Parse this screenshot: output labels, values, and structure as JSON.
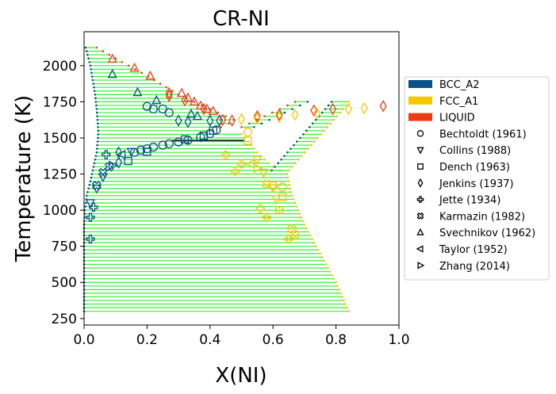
{
  "chart_data": {
    "type": "scatter",
    "title": "CR-NI",
    "xlabel": "X(NI)",
    "ylabel": "Temperature (K)",
    "xlim": [
      0,
      1
    ],
    "ylim": [
      205,
      2235
    ],
    "xticks": [
      "0.0",
      "0.2",
      "0.4",
      "0.6",
      "0.8",
      "1.0"
    ],
    "xtick_values": [
      0,
      0.2,
      0.4,
      0.6,
      0.8,
      1.0
    ],
    "yticks": [
      "250",
      "500",
      "750",
      "1000",
      "1250",
      "1500",
      "1750",
      "2000"
    ],
    "ytick_values": [
      250,
      500,
      750,
      1000,
      1250,
      1500,
      1750,
      2000
    ],
    "grid": false,
    "legend_placement": "outside-right",
    "colors": {
      "BCC_A2": "#0a5189",
      "FCC_A1": "#f5c800",
      "LIQUID": "#ee3a17",
      "tieline": "#33f033"
    },
    "phases": [
      {
        "name": "BCC_A2",
        "color": "#0a5189"
      },
      {
        "name": "FCC_A1",
        "color": "#f5c800"
      },
      {
        "name": "LIQUID",
        "color": "#ee3a17"
      }
    ],
    "datasets": [
      {
        "name": "Bechtoldt (1961)",
        "marker": "circle"
      },
      {
        "name": "Collins (1988)",
        "marker": "triangle-down"
      },
      {
        "name": "Dench (1963)",
        "marker": "square"
      },
      {
        "name": "Jenkins (1937)",
        "marker": "diamond"
      },
      {
        "name": "Jette (1934)",
        "marker": "plus"
      },
      {
        "name": "Karmazin (1982)",
        "marker": "x-cross"
      },
      {
        "name": "Svechnikov (1962)",
        "marker": "triangle-up"
      },
      {
        "name": "Taylor (1952)",
        "marker": "triangle-left"
      },
      {
        "name": "Zhang (2014)",
        "marker": "triangle-right"
      }
    ],
    "tieline_regions": [
      {
        "T_from": 1550,
        "T_to": 2125,
        "step": 25,
        "left_phase": "BCC_A2",
        "right_phase": "LIQUID",
        "left": [
          [
            0.045,
            1550
          ],
          [
            0.04,
            1700
          ],
          [
            0.035,
            1800
          ],
          [
            0.02,
            2000
          ],
          [
            0.005,
            2125
          ]
        ],
        "right": [
          [
            0.41,
            1550
          ],
          [
            0.48,
            1620
          ],
          [
            0.4,
            1700
          ],
          [
            0.3,
            1800
          ],
          [
            0.2,
            1930
          ],
          [
            0.1,
            2050
          ],
          [
            0.04,
            2125
          ]
        ]
      },
      {
        "T_from": 300,
        "T_to": 1525,
        "step": 25,
        "left_phase": "BCC_A2",
        "right_phase": "FCC_A1",
        "left": [
          [
            0,
            300
          ],
          [
            0,
            900
          ],
          [
            0.003,
            1000
          ],
          [
            0.008,
            1100
          ],
          [
            0.02,
            1200
          ],
          [
            0.03,
            1300
          ],
          [
            0.04,
            1400
          ],
          [
            0.045,
            1525
          ]
        ],
        "right": [
          [
            0.84,
            300
          ],
          [
            0.8,
            500
          ],
          [
            0.75,
            700
          ],
          [
            0.7,
            900
          ],
          [
            0.66,
            1100
          ],
          [
            0.645,
            1250
          ],
          [
            0.6,
            1300
          ],
          [
            0.55,
            1400
          ],
          [
            0.52,
            1480
          ],
          [
            0.5,
            1525
          ]
        ]
      },
      {
        "T_from": 1275,
        "T_to": 1750,
        "step": 25,
        "left_phase": "BCC_A2",
        "right_phase": "FCC_A1",
        "left": [
          [
            0.59,
            1260
          ],
          [
            0.79,
            1760
          ]
        ],
        "right": [
          [
            0.645,
            1260
          ],
          [
            0.84,
            1740
          ],
          [
            0.84,
            1760
          ]
        ]
      },
      {
        "T_from": 1575,
        "T_to": 1750,
        "step": 25,
        "left_phase": "LIQUID",
        "right_phase": "BCC_A2",
        "left": [
          [
            0.5,
            1575
          ],
          [
            0.68,
            1760
          ]
        ],
        "right": [
          [
            0.54,
            1575
          ],
          [
            0.72,
            1760
          ]
        ]
      }
    ],
    "invariant_line": {
      "x": [
        0.28,
        0.51
      ],
      "T": 1483
    },
    "points": [
      {
        "d": "Svechnikov (1962)",
        "p": "LIQUID",
        "x": 0.09,
        "T": 2046
      },
      {
        "d": "Svechnikov (1962)",
        "p": "LIQUID",
        "x": 0.16,
        "T": 1984
      },
      {
        "d": "Svechnikov (1962)",
        "p": "LIQUID",
        "x": 0.21,
        "T": 1929
      },
      {
        "d": "Svechnikov (1962)",
        "p": "LIQUID",
        "x": 0.31,
        "T": 1810
      },
      {
        "d": "Svechnikov (1962)",
        "p": "LIQUID",
        "x": 0.33,
        "T": 1777
      },
      {
        "d": "Svechnikov (1962)",
        "p": "LIQUID",
        "x": 0.35,
        "T": 1750
      },
      {
        "d": "Svechnikov (1962)",
        "p": "LIQUID",
        "x": 0.37,
        "T": 1722
      },
      {
        "d": "Svechnikov (1962)",
        "p": "LIQUID",
        "x": 0.39,
        "T": 1700
      },
      {
        "d": "Svechnikov (1962)",
        "p": "LIQUID",
        "x": 0.41,
        "T": 1685
      },
      {
        "d": "Svechnikov (1962)",
        "p": "BCC_A2",
        "x": 0.09,
        "T": 1940
      },
      {
        "d": "Svechnikov (1962)",
        "p": "BCC_A2",
        "x": 0.17,
        "T": 1815
      },
      {
        "d": "Svechnikov (1962)",
        "p": "BCC_A2",
        "x": 0.23,
        "T": 1760
      },
      {
        "d": "Svechnikov (1962)",
        "p": "BCC_A2",
        "x": 0.34,
        "T": 1665
      },
      {
        "d": "Svechnikov (1962)",
        "p": "BCC_A2",
        "x": 0.36,
        "T": 1650
      },
      {
        "d": "Bechtoldt (1961)",
        "p": "BCC_A2",
        "x": 0.2,
        "T": 1718
      },
      {
        "d": "Bechtoldt (1961)",
        "p": "BCC_A2",
        "x": 0.22,
        "T": 1700
      },
      {
        "d": "Bechtoldt (1961)",
        "p": "BCC_A2",
        "x": 0.25,
        "T": 1700
      },
      {
        "d": "Bechtoldt (1961)",
        "p": "BCC_A2",
        "x": 0.27,
        "T": 1675
      },
      {
        "d": "Bechtoldt (1961)",
        "p": "BCC_A2",
        "x": 0.16,
        "T": 1400
      },
      {
        "d": "Bechtoldt (1961)",
        "p": "BCC_A2",
        "x": 0.18,
        "T": 1415
      },
      {
        "d": "Bechtoldt (1961)",
        "p": "BCC_A2",
        "x": 0.2,
        "T": 1425
      },
      {
        "d": "Bechtoldt (1961)",
        "p": "BCC_A2",
        "x": 0.22,
        "T": 1437
      },
      {
        "d": "Bechtoldt (1961)",
        "p": "BCC_A2",
        "x": 0.25,
        "T": 1450
      },
      {
        "d": "Bechtoldt (1961)",
        "p": "BCC_A2",
        "x": 0.27,
        "T": 1460
      },
      {
        "d": "Bechtoldt (1961)",
        "p": "BCC_A2",
        "x": 0.3,
        "T": 1472
      },
      {
        "d": "Bechtoldt (1961)",
        "p": "BCC_A2",
        "x": 0.33,
        "T": 1485
      },
      {
        "d": "Bechtoldt (1961)",
        "p": "BCC_A2",
        "x": 0.37,
        "T": 1505
      },
      {
        "d": "Bechtoldt (1961)",
        "p": "BCC_A2",
        "x": 0.4,
        "T": 1530
      },
      {
        "d": "Bechtoldt (1961)",
        "p": "BCC_A2",
        "x": 0.42,
        "T": 1555
      },
      {
        "d": "Bechtoldt (1961)",
        "p": "FCC_A1",
        "x": 0.52,
        "T": 1540
      },
      {
        "d": "Bechtoldt (1961)",
        "p": "FCC_A1",
        "x": 0.6,
        "T": 1170
      },
      {
        "d": "Bechtoldt (1961)",
        "p": "FCC_A1",
        "x": 0.63,
        "T": 1160
      },
      {
        "d": "Jenkins (1937)",
        "p": "BCC_A2",
        "x": 0.3,
        "T": 1620
      },
      {
        "d": "Jenkins (1937)",
        "p": "BCC_A2",
        "x": 0.33,
        "T": 1610
      },
      {
        "d": "Jenkins (1937)",
        "p": "BCC_A2",
        "x": 0.4,
        "T": 1620
      },
      {
        "d": "Jenkins (1937)",
        "p": "BCC_A2",
        "x": 0.43,
        "T": 1620
      },
      {
        "d": "Jenkins (1937)",
        "p": "BCC_A2",
        "x": 0.11,
        "T": 1400
      },
      {
        "d": "Jenkins (1937)",
        "p": "BCC_A2",
        "x": 0.11,
        "T": 1330
      },
      {
        "d": "Jenkins (1937)",
        "p": "LIQUID",
        "x": 0.27,
        "T": 1810
      },
      {
        "d": "Jenkins (1937)",
        "p": "LIQUID",
        "x": 0.27,
        "T": 1790
      },
      {
        "d": "Jenkins (1937)",
        "p": "LIQUID",
        "x": 0.32,
        "T": 1760
      },
      {
        "d": "Jenkins (1937)",
        "p": "LIQUID",
        "x": 0.38,
        "T": 1700
      },
      {
        "d": "Jenkins (1937)",
        "p": "LIQUID",
        "x": 0.44,
        "T": 1625
      },
      {
        "d": "Jenkins (1937)",
        "p": "LIQUID",
        "x": 0.47,
        "T": 1620
      },
      {
        "d": "Jenkins (1937)",
        "p": "LIQUID",
        "x": 0.55,
        "T": 1650
      },
      {
        "d": "Jenkins (1937)",
        "p": "LIQUID",
        "x": 0.62,
        "T": 1660
      },
      {
        "d": "Jenkins (1937)",
        "p": "LIQUID",
        "x": 0.73,
        "T": 1690
      },
      {
        "d": "Jenkins (1937)",
        "p": "LIQUID",
        "x": 0.79,
        "T": 1700
      },
      {
        "d": "Jenkins (1937)",
        "p": "LIQUID",
        "x": 0.95,
        "T": 1720
      },
      {
        "d": "Jenkins (1937)",
        "p": "FCC_A1",
        "x": 0.5,
        "T": 1630
      },
      {
        "d": "Jenkins (1937)",
        "p": "FCC_A1",
        "x": 0.55,
        "T": 1635
      },
      {
        "d": "Jenkins (1937)",
        "p": "FCC_A1",
        "x": 0.62,
        "T": 1645
      },
      {
        "d": "Jenkins (1937)",
        "p": "FCC_A1",
        "x": 0.67,
        "T": 1660
      },
      {
        "d": "Jenkins (1937)",
        "p": "FCC_A1",
        "x": 0.74,
        "T": 1670
      },
      {
        "d": "Jenkins (1937)",
        "p": "FCC_A1",
        "x": 0.84,
        "T": 1700
      },
      {
        "d": "Jenkins (1937)",
        "p": "FCC_A1",
        "x": 0.89,
        "T": 1705
      },
      {
        "d": "Dench (1963)",
        "p": "BCC_A2",
        "x": 0.14,
        "T": 1340
      },
      {
        "d": "Dench (1963)",
        "p": "BCC_A2",
        "x": 0.2,
        "T": 1405
      },
      {
        "d": "Dench (1963)",
        "p": "BCC_A2",
        "x": 0.32,
        "T": 1490
      },
      {
        "d": "Dench (1963)",
        "p": "BCC_A2",
        "x": 0.38,
        "T": 1515
      },
      {
        "d": "Dench (1963)",
        "p": "BCC_A2",
        "x": 0.41,
        "T": 1550
      },
      {
        "d": "Dench (1963)",
        "p": "FCC_A1",
        "x": 0.52,
        "T": 1480
      },
      {
        "d": "Dench (1963)",
        "p": "FCC_A1",
        "x": 0.63,
        "T": 1090
      },
      {
        "d": "Collins (1988)",
        "p": "BCC_A2",
        "x": 0.02,
        "T": 1050
      },
      {
        "d": "Collins (1988)",
        "p": "BCC_A2",
        "x": 0.04,
        "T": 1150
      },
      {
        "d": "Collins (1988)",
        "p": "BCC_A2",
        "x": 0.06,
        "T": 1230
      },
      {
        "d": "Collins (1988)",
        "p": "BCC_A2",
        "x": 0.15,
        "T": 1405
      },
      {
        "d": "Collins (1988)",
        "p": "FCC_A1",
        "x": 0.55,
        "T": 1350
      },
      {
        "d": "Collins (1988)",
        "p": "FCC_A1",
        "x": 0.57,
        "T": 1260
      },
      {
        "d": "Collins (1988)",
        "p": "FCC_A1",
        "x": 0.6,
        "T": 1155
      },
      {
        "d": "Collins (1988)",
        "p": "FCC_A1",
        "x": 0.61,
        "T": 1080
      },
      {
        "d": "Jette (1934)",
        "p": "BCC_A2",
        "x": 0.02,
        "T": 800
      },
      {
        "d": "Jette (1934)",
        "p": "BCC_A2",
        "x": 0.02,
        "T": 950
      },
      {
        "d": "Jette (1934)",
        "p": "BCC_A2",
        "x": 0.03,
        "T": 1020
      },
      {
        "d": "Jette (1934)",
        "p": "BCC_A2",
        "x": 0.07,
        "T": 1385
      },
      {
        "d": "Jette (1934)",
        "p": "FCC_A1",
        "x": 0.45,
        "T": 1380
      },
      {
        "d": "Jette (1934)",
        "p": "FCC_A1",
        "x": 0.5,
        "T": 1320
      },
      {
        "d": "Jette (1934)",
        "p": "FCC_A1",
        "x": 0.48,
        "T": 1270
      },
      {
        "d": "Jette (1934)",
        "p": "FCC_A1",
        "x": 0.56,
        "T": 1010
      },
      {
        "d": "Jette (1934)",
        "p": "FCC_A1",
        "x": 0.58,
        "T": 950
      },
      {
        "d": "Jette (1934)",
        "p": "FCC_A1",
        "x": 0.65,
        "T": 800
      },
      {
        "d": "Karmazin (1982)",
        "p": "BCC_A2",
        "x": 0.04,
        "T": 1170
      },
      {
        "d": "Karmazin (1982)",
        "p": "BCC_A2",
        "x": 0.06,
        "T": 1260
      },
      {
        "d": "Karmazin (1982)",
        "p": "BCC_A2",
        "x": 0.08,
        "T": 1300
      },
      {
        "d": "Karmazin (1982)",
        "p": "FCC_A1",
        "x": 0.58,
        "T": 1180
      },
      {
        "d": "Karmazin (1982)",
        "p": "FCC_A1",
        "x": 0.62,
        "T": 1000
      },
      {
        "d": "Karmazin (1982)",
        "p": "FCC_A1",
        "x": 0.66,
        "T": 870
      },
      {
        "d": "Karmazin (1982)",
        "p": "FCC_A1",
        "x": 0.67,
        "T": 830
      },
      {
        "d": "Taylor (1952)",
        "p": "BCC_A2",
        "x": 0.12,
        "T": 1385
      },
      {
        "d": "Taylor (1952)",
        "p": "FCC_A1",
        "x": 0.53,
        "T": 1320
      },
      {
        "d": "Zhang (2014)",
        "p": "BCC_A2",
        "x": 0.09,
        "T": 1310
      },
      {
        "d": "Zhang (2014)",
        "p": "FCC_A1",
        "x": 0.55,
        "T": 1290
      }
    ]
  }
}
